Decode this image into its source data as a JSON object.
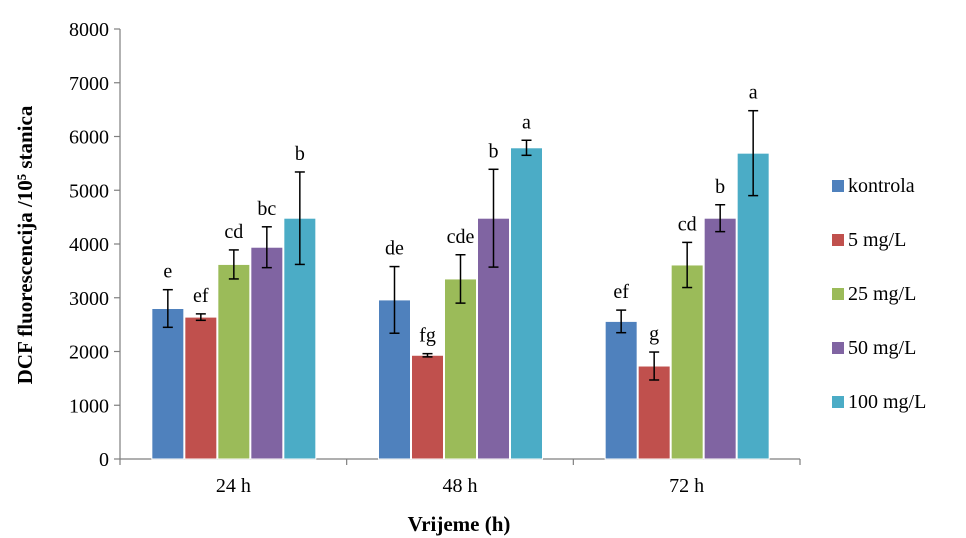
{
  "chart_data": {
    "type": "bar",
    "title": "",
    "xlabel": "Vrijeme (h)",
    "ylabel": "DCF fluorescencija /10⁵ stanica",
    "ylim": [
      0,
      8000
    ],
    "yticks": [
      0,
      1000,
      2000,
      3000,
      4000,
      5000,
      6000,
      7000,
      8000
    ],
    "grid": false,
    "legend_position": "right",
    "categories": [
      "24 h",
      "48 h",
      "72 h"
    ],
    "series": [
      {
        "name": "kontrola",
        "color": "#4f81bd",
        "values": [
          2800,
          2960,
          2560
        ],
        "errors": [
          350,
          620,
          210
        ],
        "labels": [
          "e",
          "de",
          "ef"
        ]
      },
      {
        "name": "5 mg/L",
        "color": "#c0504d",
        "values": [
          2640,
          1930,
          1730
        ],
        "errors": [
          60,
          30,
          260
        ],
        "labels": [
          "ef",
          "fg",
          "g"
        ]
      },
      {
        "name": "25 mg/L",
        "color": "#9bbb59",
        "values": [
          3620,
          3350,
          3610
        ],
        "errors": [
          270,
          450,
          420
        ],
        "labels": [
          "cd",
          "cde",
          "cd"
        ]
      },
      {
        "name": "50 mg/L",
        "color": "#8064a2",
        "values": [
          3940,
          4480,
          4480
        ],
        "errors": [
          380,
          910,
          250
        ],
        "labels": [
          "bc",
          "b",
          "b"
        ]
      },
      {
        "name": "100 mg/L",
        "color": "#4bacc6",
        "values": [
          4480,
          5790,
          5690
        ],
        "errors": [
          860,
          140,
          790
        ],
        "labels": [
          "b",
          "a",
          "a"
        ]
      }
    ]
  }
}
